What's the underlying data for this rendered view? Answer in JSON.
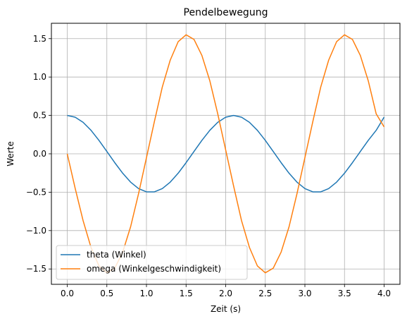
{
  "chart_data": {
    "type": "line",
    "title": "Pendelbewegung",
    "xlabel": "Zeit (s)",
    "ylabel": "Werte",
    "xlim": [
      -0.2,
      4.2
    ],
    "ylim": [
      -1.7,
      1.7
    ],
    "xticks": [
      0.0,
      0.5,
      1.0,
      1.5,
      2.0,
      2.5,
      3.0,
      3.5,
      4.0
    ],
    "yticks": [
      -1.5,
      -1.0,
      -0.5,
      0.0,
      0.5,
      1.0,
      1.5
    ],
    "xtick_labels": [
      "0.0",
      "0.5",
      "1.0",
      "1.5",
      "2.0",
      "2.5",
      "3.0",
      "3.5",
      "4.0"
    ],
    "ytick_labels": [
      "−1.5",
      "−1.0",
      "−0.5",
      "0.0",
      "0.5",
      "1.0",
      "1.5"
    ],
    "grid": true,
    "legend_position": "lower-left",
    "x": [
      0.0,
      0.1,
      0.2,
      0.3,
      0.4,
      0.5,
      0.6,
      0.7,
      0.8,
      0.9,
      1.0,
      1.1,
      1.2,
      1.3,
      1.4,
      1.5,
      1.6,
      1.7,
      1.8,
      1.9,
      2.0,
      2.1,
      2.2,
      2.3,
      2.4,
      2.5,
      2.6,
      2.7,
      2.8,
      2.9,
      3.0,
      3.1,
      3.2,
      3.3,
      3.4,
      3.5,
      3.6,
      3.7,
      3.8,
      3.9,
      4.0
    ],
    "series": [
      {
        "name": "theta (Winkel)",
        "color": "#1f77b4",
        "values": [
          0.5,
          0.477,
          0.41,
          0.306,
          0.175,
          0.03,
          -0.116,
          -0.253,
          -0.369,
          -0.453,
          -0.496,
          -0.496,
          -0.453,
          -0.369,
          -0.253,
          -0.116,
          0.03,
          0.175,
          0.306,
          0.41,
          0.477,
          0.5,
          0.477,
          0.41,
          0.306,
          0.175,
          0.03,
          -0.116,
          -0.253,
          -0.369,
          -0.453,
          -0.496,
          -0.496,
          -0.453,
          -0.369,
          -0.253,
          -0.116,
          0.03,
          0.175,
          0.306,
          0.478
        ]
      },
      {
        "name": "omega (Winkelgeschwindigkeit)",
        "color": "#ff7f0e",
        "values": [
          0.0,
          -0.45,
          -0.87,
          -1.22,
          -1.46,
          -1.55,
          -1.49,
          -1.28,
          -0.95,
          -0.52,
          -0.05,
          0.42,
          0.87,
          1.22,
          1.46,
          1.55,
          1.49,
          1.28,
          0.95,
          0.52,
          0.05,
          -0.42,
          -0.87,
          -1.22,
          -1.46,
          -1.55,
          -1.49,
          -1.28,
          -0.95,
          -0.52,
          -0.05,
          0.42,
          0.87,
          1.22,
          1.46,
          1.55,
          1.49,
          1.28,
          0.95,
          0.52,
          0.35
        ]
      }
    ]
  }
}
